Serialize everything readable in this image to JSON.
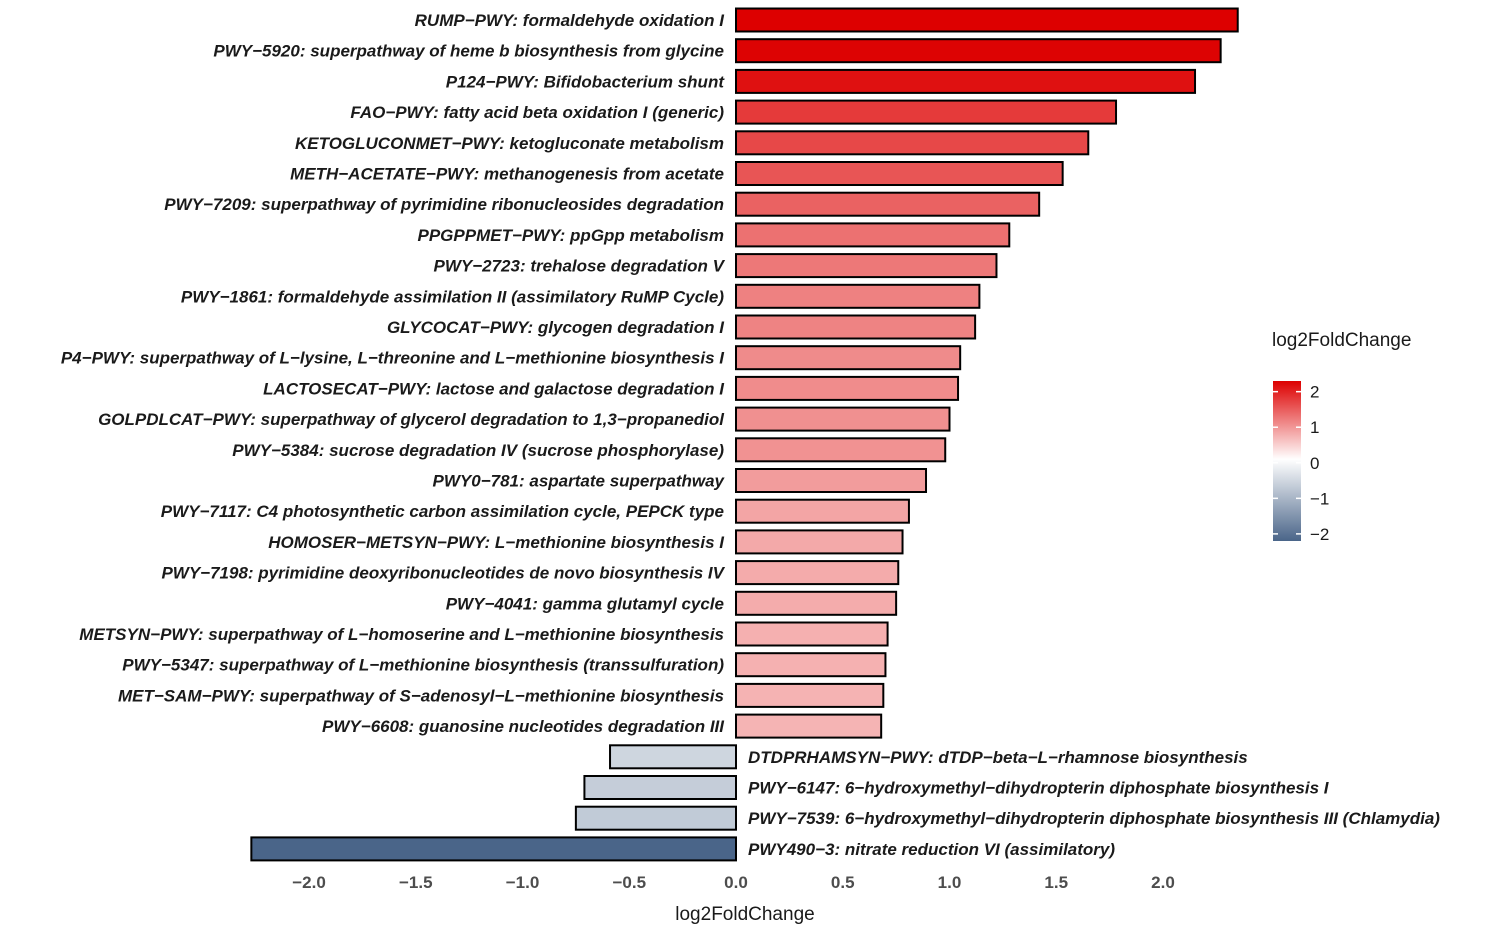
{
  "chart_data": {
    "type": "bar",
    "orientation": "horizontal",
    "xlabel": "log2FoldChange",
    "ylabel": "",
    "xlim": [
      -2.28,
      2.45
    ],
    "x_ticks": [
      -2.0,
      -1.5,
      -1.0,
      -0.5,
      0.0,
      0.5,
      1.0,
      1.5,
      2.0
    ],
    "x_tick_labels": [
      "−2.0",
      "−1.5",
      "−1.0",
      "−0.5",
      "0.0",
      "0.5",
      "1.0",
      "1.5",
      "2.0"
    ],
    "grid": false,
    "legend": {
      "title": "log2FoldChange",
      "placement": "right",
      "type": "colorbar",
      "range": [
        -2.2,
        2.3
      ],
      "ticks": [
        2,
        1,
        0,
        -1,
        -2
      ],
      "tick_labels": [
        "2",
        "1",
        "0",
        "−1",
        "−2"
      ],
      "colors": {
        "high": "#dd0000",
        "mid": "#ffffff",
        "low": "#4a6589"
      }
    },
    "categories": [
      "RUMP−PWY: formaldehyde oxidation I",
      "PWY−5920: superpathway of heme b biosynthesis from glycine",
      "P124−PWY: Bifidobacterium shunt",
      "FAO−PWY: fatty acid beta oxidation I (generic)",
      "KETOGLUCONMET−PWY: ketogluconate metabolism",
      "METH−ACETATE−PWY: methanogenesis from acetate",
      "PWY−7209: superpathway of pyrimidine ribonucleosides degradation",
      "PPGPPMET−PWY: ppGpp metabolism",
      "PWY−2723: trehalose degradation V",
      "PWY−1861: formaldehyde assimilation II (assimilatory RuMP Cycle)",
      "GLYCOCAT−PWY: glycogen degradation I",
      "P4−PWY: superpathway of L−lysine, L−threonine and L−methionine biosynthesis I",
      "LACTOSECAT−PWY: lactose and galactose degradation I",
      "GOLPDLCAT−PWY: superpathway of glycerol degradation to 1,3−propanediol",
      "PWY−5384: sucrose degradation IV (sucrose phosphorylase)",
      "PWY0−781: aspartate superpathway",
      "PWY−7117: C4 photosynthetic carbon assimilation cycle, PEPCK type",
      "HOMOSER−METSYN−PWY: L−methionine biosynthesis I",
      "PWY−7198: pyrimidine deoxyribonucleotides de novo biosynthesis IV",
      "PWY−4041: gamma glutamyl cycle",
      "METSYN−PWY: superpathway of L−homoserine and L−methionine biosynthesis",
      "PWY−5347: superpathway of L−methionine biosynthesis (transsulfuration)",
      "MET−SAM−PWY: superpathway of S−adenosyl−L−methionine biosynthesis",
      "PWY−6608: guanosine nucleotides degradation III",
      "DTDPRHAMSYN−PWY: dTDP−beta−L−rhamnose biosynthesis",
      "PWY−6147: 6−hydroxymethyl−dihydropterin diphosphate biosynthesis I",
      "PWY−7539: 6−hydroxymethyl−dihydropterin diphosphate biosynthesis III (Chlamydia)",
      "PWY490−3: nitrate reduction VI (assimilatory)"
    ],
    "values": [
      2.35,
      2.27,
      2.15,
      1.78,
      1.65,
      1.53,
      1.42,
      1.28,
      1.22,
      1.14,
      1.12,
      1.05,
      1.04,
      1.0,
      0.98,
      0.89,
      0.81,
      0.78,
      0.76,
      0.75,
      0.71,
      0.7,
      0.69,
      0.68,
      -0.59,
      -0.71,
      -0.75,
      -2.27
    ]
  }
}
